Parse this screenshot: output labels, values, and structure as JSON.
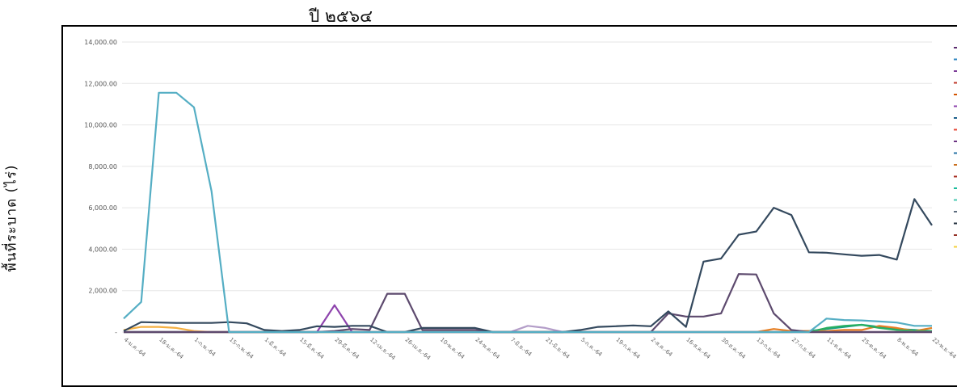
{
  "page": {
    "title": "ปี ๒๕๖๔"
  },
  "chart_data": {
    "type": "line",
    "title": "ปี ๒๕๖๔",
    "xlabel": "",
    "ylabel": "พื้นที่ระบาด (ไร่)",
    "ylim": [
      0,
      14000
    ],
    "yticks": [
      "14,000.00",
      "12,000.00",
      "10,000.00",
      "8,000.00",
      "6,000.00",
      "4,000.00",
      "2,000.00",
      "-"
    ],
    "ytick_values": [
      14000,
      12000,
      10000,
      8000,
      6000,
      4000,
      2000,
      0
    ],
    "grid": true,
    "legend": "right",
    "categories": [
      "4-ม.ค.-64",
      "",
      "18-ม.ค.-64",
      "",
      "1-ก.พ.-64",
      "",
      "15-ก.พ.-64",
      "",
      "1-มี.ค.-64",
      "",
      "15-มี.ค.-64",
      "",
      "29-มี.ค.-64",
      "",
      "12-เม.ย.-64",
      "",
      "26-เม.ย.-64",
      "",
      "10-พ.ค.-64",
      "",
      "24-พ.ค.-64",
      "",
      "7-มิ.ย.-64",
      "",
      "21-มิ.ย.-64",
      "",
      "5-ก.ค.-64",
      "",
      "19-ก.ค.-64",
      "",
      "2-ส.ค.-64",
      "",
      "16-ส.ค.-64",
      "",
      "30-ส.ค.-64",
      "",
      "13-ก.ย.-64",
      "",
      "27-ก.ย.-64",
      "",
      "11-ต.ค.-64",
      "",
      "25-ต.ค.-64",
      "",
      "8-พ.ย.-64",
      "",
      "22-พ.ย.-64"
    ],
    "series": [
      {
        "color": "#55aec4",
        "values": [
          650,
          1450,
          11550,
          11550,
          10850,
          6800,
          0,
          0,
          0,
          0,
          0,
          0,
          0,
          0,
          0,
          0,
          0,
          0,
          0,
          0,
          0,
          0,
          0,
          0,
          0,
          0,
          0,
          0,
          0,
          0,
          0,
          0,
          0,
          0,
          0,
          0,
          0,
          0,
          0,
          0,
          650,
          580,
          560,
          510,
          460,
          300,
          300
        ]
      },
      {
        "color": "#34495e",
        "values": [
          50,
          480,
          460,
          440,
          440,
          440,
          480,
          420,
          100,
          50,
          100,
          280,
          250,
          300,
          300,
          0,
          0,
          200,
          200,
          200,
          200,
          0,
          0,
          0,
          0,
          0,
          100,
          250,
          280,
          320,
          280,
          1000,
          250,
          3400,
          3550,
          4700,
          4850,
          6000,
          5650,
          3850,
          3830,
          3750,
          3680,
          3720,
          3500,
          6420,
          5150
        ]
      },
      {
        "color": "#5d4a6e",
        "values": [
          0,
          0,
          0,
          0,
          0,
          0,
          0,
          0,
          0,
          0,
          0,
          0,
          50,
          150,
          100,
          1850,
          1850,
          100,
          100,
          100,
          100,
          0,
          0,
          0,
          0,
          0,
          0,
          0,
          0,
          0,
          0,
          900,
          750,
          750,
          900,
          2800,
          2780,
          900,
          100,
          0,
          0,
          0,
          0,
          0,
          0,
          0,
          0
        ]
      },
      {
        "color": "#8e44ad",
        "values": [
          0,
          0,
          0,
          0,
          0,
          0,
          0,
          0,
          0,
          0,
          0,
          0,
          1300,
          0,
          0,
          0,
          0,
          0,
          0,
          0,
          0,
          0,
          0,
          0,
          0,
          0,
          0,
          0,
          0,
          0,
          0,
          0,
          0,
          0,
          0,
          0,
          0,
          0,
          0,
          0,
          0,
          0,
          0,
          0,
          0,
          0,
          0
        ]
      },
      {
        "color": "#b39dc8",
        "values": [
          0,
          0,
          0,
          0,
          0,
          0,
          0,
          0,
          0,
          0,
          0,
          0,
          0,
          0,
          0,
          0,
          0,
          0,
          0,
          0,
          0,
          0,
          0,
          300,
          200,
          0,
          0,
          0,
          0,
          0,
          0,
          0,
          0,
          0,
          0,
          0,
          0,
          0,
          0,
          0,
          0,
          0,
          0,
          0,
          0,
          0,
          0
        ]
      },
      {
        "color": "#f5b041",
        "values": [
          100,
          250,
          250,
          200,
          50,
          0,
          0,
          0,
          0,
          0,
          0,
          0,
          0,
          0,
          0,
          0,
          0,
          0,
          0,
          0,
          0,
          0,
          0,
          0,
          0,
          0,
          0,
          0,
          0,
          0,
          0,
          0,
          0,
          0,
          0,
          0,
          0,
          0,
          0,
          0,
          0,
          0,
          0,
          0,
          0,
          0,
          0
        ]
      },
      {
        "color": "#27ae60",
        "values": [
          0,
          0,
          0,
          0,
          0,
          0,
          0,
          0,
          0,
          0,
          0,
          0,
          0,
          0,
          0,
          0,
          0,
          0,
          0,
          0,
          0,
          0,
          0,
          0,
          0,
          0,
          0,
          0,
          0,
          0,
          0,
          0,
          0,
          0,
          0,
          0,
          0,
          0,
          0,
          0,
          200,
          300,
          350,
          200,
          100,
          50,
          50
        ]
      },
      {
        "color": "#e67e22",
        "values": [
          0,
          0,
          0,
          0,
          0,
          0,
          0,
          0,
          0,
          0,
          0,
          0,
          0,
          0,
          0,
          0,
          0,
          0,
          0,
          0,
          0,
          0,
          0,
          0,
          0,
          0,
          0,
          0,
          0,
          0,
          0,
          0,
          0,
          0,
          0,
          0,
          0,
          150,
          50,
          50,
          50,
          100,
          100,
          300,
          200,
          50,
          200
        ]
      },
      {
        "color": "#16a085",
        "values": [
          0,
          0,
          0,
          0,
          0,
          0,
          0,
          0,
          0,
          0,
          0,
          0,
          0,
          0,
          0,
          0,
          0,
          0,
          0,
          0,
          0,
          0,
          0,
          0,
          0,
          0,
          0,
          0,
          0,
          0,
          0,
          0,
          0,
          0,
          0,
          0,
          0,
          0,
          0,
          50,
          150,
          250,
          350,
          250,
          150,
          100,
          50
        ]
      }
    ],
    "legend_colors": [
      "#5b2c6f",
      "#2e86c1",
      "#7d3c98",
      "#c0392b",
      "#d35400",
      "#8e44ad",
      "#1f618d",
      "#e74c3c",
      "#6c3483",
      "#2874a6",
      "#ca6f1e",
      "#a93226",
      "#1abc9c",
      "#48c9b0",
      "#5d6d7e",
      "#212f3d",
      "#943126",
      "#f4d03f"
    ]
  }
}
